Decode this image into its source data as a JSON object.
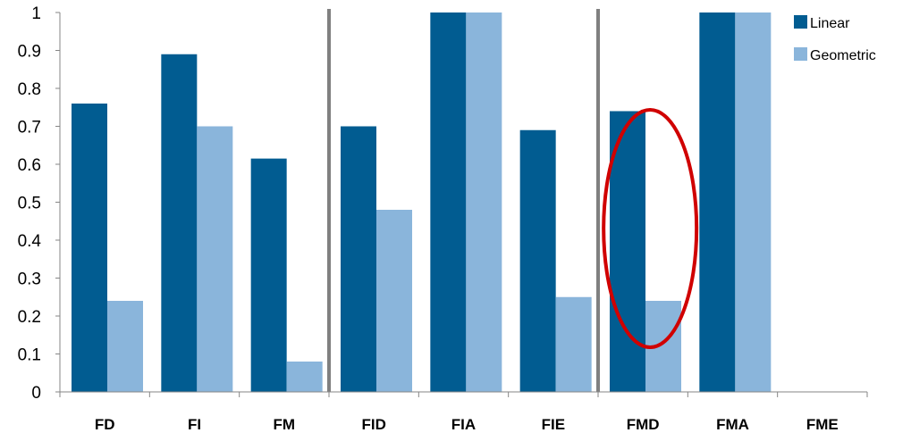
{
  "chart_data": {
    "type": "bar",
    "categories": [
      "FD",
      "FI",
      "FM",
      "FID",
      "FIA",
      "FIE",
      "FMD",
      "FMA",
      "FME"
    ],
    "series": [
      {
        "name": "Linear",
        "color": "#015c91",
        "values": [
          0.76,
          0.89,
          0.615,
          0.7,
          1.0,
          0.69,
          0.74,
          1.0,
          0
        ]
      },
      {
        "name": "Geometric",
        "color": "#8ab5db",
        "values": [
          0.24,
          0.7,
          0.08,
          0.48,
          1.0,
          0.25,
          0.24,
          1.0,
          0
        ]
      }
    ],
    "y_ticks": [
      "0",
      "0.1",
      "0.2",
      "0.3",
      "0.4",
      "0.5",
      "0.6",
      "0.7",
      "0.8",
      "0.9",
      "1"
    ],
    "ylim": [
      0,
      1
    ],
    "grid": false,
    "legend_position": "top-right",
    "separators_after_categories": [
      "FM",
      "FIE"
    ],
    "separator_color": "#808080",
    "highlight": {
      "category": "FMD",
      "shape": "ellipse",
      "color": "#d00000"
    },
    "title": "",
    "xlabel": "",
    "ylabel": ""
  }
}
